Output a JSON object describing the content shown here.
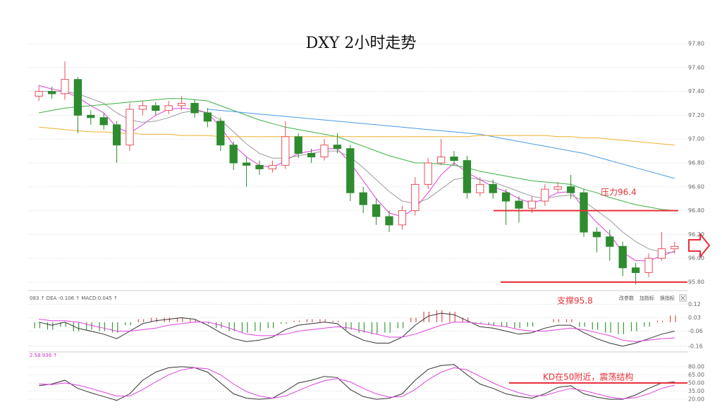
{
  "chart_data": [
    {
      "type": "candlestick",
      "title": "DXY 2小时走势",
      "up_color": "#e8505a",
      "down_color": "#2e8b2e",
      "open": [
        97.36,
        97.4,
        97.38,
        97.5,
        97.2,
        97.18,
        97.12,
        96.95,
        97.25,
        97.28,
        97.24,
        97.28,
        97.3,
        97.22,
        97.15,
        96.95,
        96.8,
        96.78,
        96.75,
        96.78,
        97.02,
        96.88,
        96.85,
        96.95,
        96.92,
        96.55,
        96.45,
        96.35,
        96.28,
        96.4,
        96.62,
        96.8,
        96.85,
        96.82,
        96.55,
        96.62,
        96.55,
        96.48,
        96.42,
        96.48,
        96.58,
        96.6,
        96.55,
        96.22,
        96.18,
        96.1,
        95.92,
        95.88,
        96.0,
        96.08
      ],
      "high": [
        97.45,
        97.44,
        97.65,
        97.52,
        97.24,
        97.22,
        97.15,
        97.3,
        97.32,
        97.31,
        97.32,
        97.36,
        97.33,
        97.26,
        97.18,
        96.98,
        96.85,
        96.82,
        96.82,
        97.15,
        97.05,
        96.92,
        97.0,
        97.05,
        96.95,
        96.6,
        96.5,
        96.4,
        96.44,
        96.68,
        96.84,
        97.0,
        96.9,
        96.86,
        96.68,
        96.66,
        96.58,
        96.52,
        96.52,
        96.62,
        96.64,
        96.7,
        96.58,
        96.26,
        96.24,
        96.14,
        95.96,
        96.04,
        96.22,
        96.14
      ],
      "low": [
        97.32,
        97.34,
        97.33,
        97.05,
        97.12,
        97.08,
        96.8,
        96.9,
        97.2,
        97.2,
        97.21,
        97.24,
        97.18,
        97.1,
        96.9,
        96.74,
        96.6,
        96.7,
        96.72,
        96.75,
        96.84,
        96.8,
        96.82,
        96.88,
        96.48,
        96.38,
        96.28,
        96.22,
        96.24,
        96.36,
        96.58,
        96.78,
        96.78,
        96.5,
        96.52,
        96.5,
        96.28,
        96.3,
        96.38,
        96.44,
        96.55,
        96.5,
        96.18,
        96.05,
        95.98,
        95.85,
        95.78,
        95.84,
        95.98,
        96.04
      ],
      "close": [
        97.4,
        97.38,
        97.5,
        97.2,
        97.18,
        97.12,
        96.95,
        97.25,
        97.28,
        97.24,
        97.28,
        97.3,
        97.22,
        97.15,
        96.95,
        96.8,
        96.78,
        96.75,
        96.78,
        97.02,
        96.88,
        96.85,
        96.95,
        96.92,
        96.55,
        96.45,
        96.35,
        96.28,
        96.4,
        96.62,
        96.8,
        96.85,
        96.82,
        96.55,
        96.62,
        96.55,
        96.48,
        96.42,
        96.48,
        96.58,
        96.6,
        96.55,
        96.22,
        96.18,
        96.1,
        95.92,
        95.88,
        96.0,
        96.08,
        96.1
      ],
      "lines": [
        {
          "color": "#e040e0",
          "values": [
            97.45,
            97.42,
            97.4,
            97.35,
            97.28,
            97.22,
            97.1,
            97.05,
            97.12,
            97.2,
            97.25,
            97.26,
            97.25,
            97.22,
            97.1,
            96.95,
            96.85,
            96.78,
            96.76,
            96.82,
            96.88,
            96.9,
            96.92,
            96.92,
            96.8,
            96.65,
            96.5,
            96.38,
            96.35,
            96.42,
            96.55,
            96.7,
            96.8,
            96.72,
            96.66,
            96.6,
            96.56,
            96.5,
            96.46,
            96.5,
            96.55,
            96.56,
            96.42,
            96.3,
            96.2,
            96.05,
            95.98,
            95.98,
            96.02,
            96.06
          ]
        },
        {
          "color": "#9a9a9a",
          "values": [
            97.4,
            97.4,
            97.4,
            97.38,
            97.34,
            97.3,
            97.22,
            97.16,
            97.14,
            97.15,
            97.18,
            97.22,
            97.24,
            97.22,
            97.16,
            97.06,
            96.96,
            96.88,
            96.84,
            96.84,
            96.86,
            96.88,
            96.9,
            96.9,
            96.85,
            96.76,
            96.66,
            96.56,
            96.48,
            96.46,
            96.5,
            96.58,
            96.66,
            96.68,
            96.66,
            96.64,
            96.6,
            96.56,
            96.52,
            96.5,
            96.52,
            96.53,
            96.48,
            96.4,
            96.32,
            96.22,
            96.14,
            96.08,
            96.05,
            96.05
          ]
        },
        {
          "color": "#3cb043",
          "values": [
            97.22,
            97.24,
            97.26,
            97.27,
            97.28,
            97.29,
            97.3,
            97.31,
            97.32,
            97.33,
            97.34,
            97.34,
            97.33,
            97.32,
            97.28,
            97.24,
            97.2,
            97.16,
            97.13,
            97.1,
            97.08,
            97.06,
            97.04,
            97.02,
            96.98,
            96.94,
            96.9,
            96.86,
            96.83,
            96.8,
            96.8,
            96.79,
            96.78,
            96.76,
            96.73,
            96.71,
            96.69,
            96.67,
            96.65,
            96.64,
            96.63,
            96.62,
            96.58,
            96.55,
            96.51,
            96.48,
            96.45,
            96.43,
            96.41,
            96.4
          ]
        },
        {
          "color": "#4a9be8",
          "values": [
            null,
            null,
            null,
            null,
            null,
            null,
            null,
            null,
            null,
            null,
            null,
            null,
            null,
            97.25,
            97.24,
            97.23,
            97.22,
            97.21,
            97.2,
            97.19,
            97.18,
            97.17,
            97.16,
            97.15,
            97.14,
            97.13,
            97.12,
            97.11,
            97.1,
            97.09,
            97.08,
            97.07,
            97.06,
            97.05,
            97.04,
            97.02,
            97.0,
            96.98,
            96.96,
            96.94,
            96.92,
            96.9,
            96.88,
            96.85,
            96.82,
            96.79,
            96.76,
            96.73,
            96.7,
            96.67
          ]
        },
        {
          "color": "#f0b030",
          "values": [
            97.1,
            97.09,
            97.08,
            97.07,
            97.06,
            97.06,
            97.05,
            97.05,
            97.04,
            97.04,
            97.04,
            97.03,
            97.03,
            97.03,
            97.02,
            97.02,
            97.02,
            97.02,
            97.02,
            97.02,
            97.02,
            97.02,
            97.02,
            97.02,
            97.02,
            97.02,
            97.02,
            97.02,
            97.02,
            97.02,
            97.02,
            97.02,
            97.02,
            97.02,
            97.03,
            97.03,
            97.03,
            97.03,
            97.03,
            97.03,
            97.02,
            97.02,
            97.01,
            97.01,
            97.0,
            96.99,
            96.98,
            96.97,
            96.96,
            96.95
          ]
        }
      ],
      "ylim": [
        95.75,
        97.85
      ],
      "yticks": [
        {
          "value": 97.8,
          "label": "97.80"
        },
        {
          "value": 97.6,
          "label": "97.60"
        },
        {
          "value": 97.4,
          "label": "97.40"
        },
        {
          "value": 97.2,
          "label": "97.20"
        },
        {
          "value": 97.0,
          "label": "97.00"
        },
        {
          "value": 96.8,
          "label": "96.80"
        },
        {
          "value": 96.6,
          "label": "96.60"
        },
        {
          "value": 96.4,
          "label": "96.40"
        },
        {
          "value": 96.2,
          "label": "96.20"
        },
        {
          "value": 96.0,
          "label": "96.00"
        },
        {
          "value": 95.8,
          "label": "95.80"
        }
      ],
      "grid": true,
      "annotations": [
        {
          "text": "压力96.4",
          "value": 96.4,
          "color": "#e8303a"
        },
        {
          "text": "支撑95.8",
          "value": 95.8,
          "color": "#e8303a"
        }
      ]
    },
    {
      "type": "combo",
      "header": "083 ↑ DEA -0.106 ↑ MACD:0.045 ↑",
      "buttons": [
        "改参数",
        "加指标",
        "换指标"
      ],
      "up_color": "#e05050",
      "down_color": "#3a9a3a",
      "series": [
        {
          "kind": "bar",
          "values": [
            -0.04,
            -0.05,
            -0.03,
            -0.06,
            -0.05,
            -0.06,
            -0.07,
            -0.02,
            0.02,
            0.03,
            0.03,
            0.03,
            0.02,
            -0.01,
            -0.04,
            -0.06,
            -0.07,
            -0.06,
            -0.04,
            -0.01,
            0.01,
            0.02,
            0.02,
            0.01,
            -0.05,
            -0.07,
            -0.08,
            -0.07,
            -0.04,
            0.03,
            0.07,
            0.08,
            0.07,
            0.03,
            -0.01,
            -0.02,
            -0.03,
            -0.04,
            -0.03,
            0.0,
            0.02,
            0.02,
            -0.03,
            -0.05,
            -0.07,
            -0.08,
            -0.06,
            -0.03,
            0.01,
            0.045
          ]
        },
        {
          "kind": "line",
          "color": "#333333",
          "values": [
            0.0,
            -0.02,
            0.0,
            -0.04,
            -0.06,
            -0.08,
            -0.11,
            -0.06,
            -0.01,
            0.01,
            0.02,
            0.03,
            0.02,
            -0.02,
            -0.07,
            -0.11,
            -0.13,
            -0.12,
            -0.1,
            -0.05,
            -0.02,
            -0.01,
            0.0,
            -0.01,
            -0.08,
            -0.12,
            -0.14,
            -0.14,
            -0.1,
            -0.02,
            0.04,
            0.06,
            0.05,
            0.01,
            -0.03,
            -0.04,
            -0.06,
            -0.08,
            -0.07,
            -0.04,
            -0.02,
            -0.02,
            -0.07,
            -0.11,
            -0.14,
            -0.16,
            -0.14,
            -0.11,
            -0.08,
            -0.06
          ]
        },
        {
          "kind": "line",
          "color": "#e040e0",
          "values": [
            0.02,
            0.01,
            0.01,
            0.0,
            -0.02,
            -0.04,
            -0.06,
            -0.06,
            -0.05,
            -0.04,
            -0.02,
            -0.01,
            0.0,
            0.0,
            -0.02,
            -0.05,
            -0.08,
            -0.09,
            -0.09,
            -0.08,
            -0.06,
            -0.05,
            -0.04,
            -0.03,
            -0.04,
            -0.06,
            -0.08,
            -0.1,
            -0.1,
            -0.08,
            -0.05,
            -0.02,
            0.0,
            0.0,
            -0.01,
            -0.02,
            -0.03,
            -0.05,
            -0.06,
            -0.06,
            -0.05,
            -0.04,
            -0.05,
            -0.07,
            -0.09,
            -0.12,
            -0.13,
            -0.12,
            -0.11,
            -0.106
          ]
        }
      ],
      "ylim": [
        -0.18,
        0.15
      ],
      "yticks": [
        0.12,
        0.03,
        -0.06,
        -0.16
      ],
      "grid": true
    },
    {
      "type": "line",
      "header": "2.58.936 ↑",
      "series": [
        {
          "color": "#333333",
          "values": [
            45,
            48,
            55,
            40,
            32,
            25,
            18,
            30,
            55,
            70,
            78,
            80,
            78,
            70,
            50,
            30,
            22,
            20,
            22,
            35,
            50,
            55,
            62,
            60,
            38,
            25,
            20,
            22,
            30,
            55,
            75,
            82,
            84,
            65,
            48,
            40,
            30,
            25,
            22,
            30,
            42,
            45,
            30,
            24,
            20,
            20,
            28,
            40,
            50,
            52
          ]
        },
        {
          "color": "#e040e0",
          "values": [
            48,
            47,
            50,
            46,
            40,
            33,
            26,
            26,
            38,
            52,
            65,
            74,
            78,
            76,
            65,
            48,
            34,
            26,
            22,
            26,
            36,
            46,
            54,
            58,
            52,
            40,
            30,
            24,
            25,
            38,
            56,
            70,
            78,
            74,
            62,
            50,
            40,
            32,
            26,
            27,
            34,
            40,
            36,
            30,
            24,
            21,
            23,
            30,
            40,
            46
          ]
        }
      ],
      "ylim": [
        15,
        85
      ],
      "yticks": [
        {
          "value": 80,
          "label": "80.00"
        },
        {
          "value": 65,
          "label": "65.00"
        },
        {
          "value": 50,
          "label": "50.00"
        },
        {
          "value": 35,
          "label": "35.00"
        },
        {
          "value": 20,
          "label": "20.00"
        }
      ],
      "grid": true,
      "annotations": [
        {
          "text": "KD在50附近，震荡结构",
          "value": 50,
          "color": "#e8303a"
        }
      ]
    }
  ]
}
